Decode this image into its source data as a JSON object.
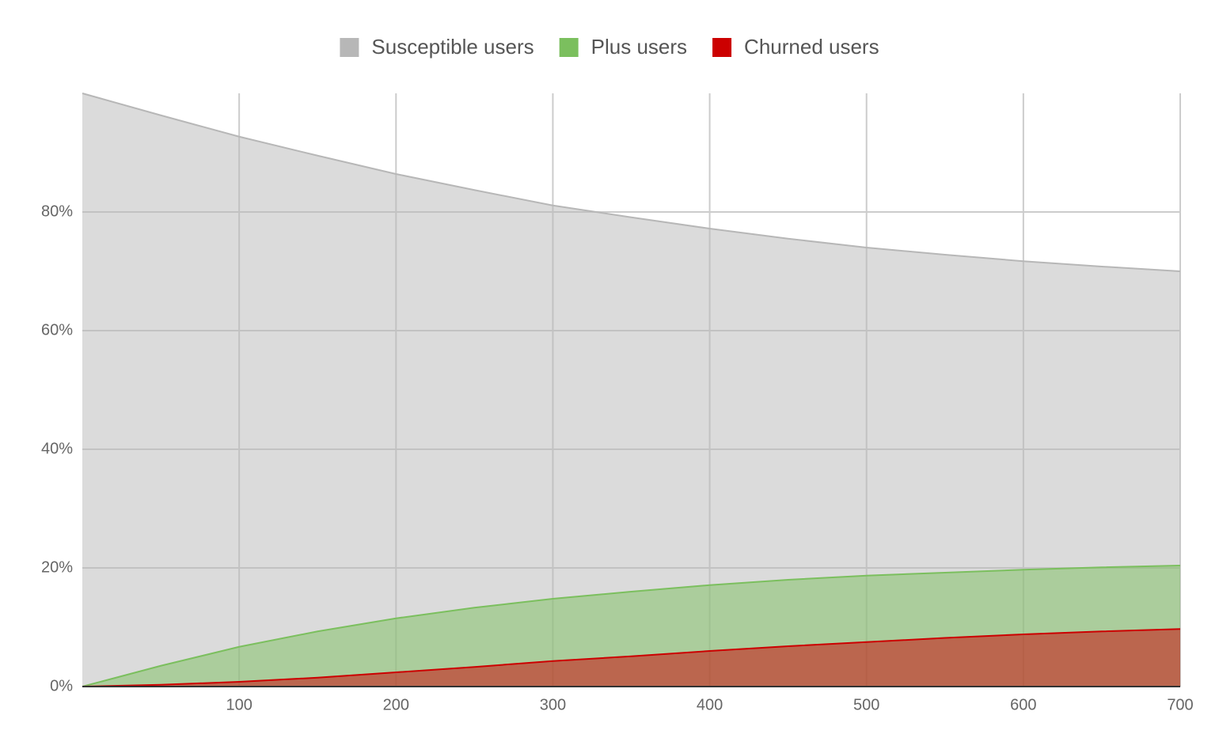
{
  "chart_data": {
    "type": "area",
    "x": [
      0,
      50,
      100,
      150,
      200,
      250,
      300,
      350,
      400,
      450,
      500,
      550,
      600,
      650,
      700
    ],
    "series": [
      {
        "name": "Susceptible users",
        "color": "#b7b7b7",
        "values": [
          100,
          96.3,
          92.7,
          89.5,
          86.4,
          83.7,
          81.1,
          79.1,
          77.2,
          75.5,
          74,
          72.8,
          71.7,
          70.8,
          70
        ]
      },
      {
        "name": "Plus users",
        "color": "#7bbf5e",
        "values": [
          0,
          3.5,
          6.7,
          9.3,
          11.5,
          13.3,
          14.8,
          16.0,
          17.1,
          18.0,
          18.7,
          19.2,
          19.7,
          20.1,
          20.4
        ]
      },
      {
        "name": "Churned users",
        "color": "#cc0000",
        "values": [
          0,
          0.3,
          0.8,
          1.5,
          2.4,
          3.3,
          4.3,
          5.1,
          6.0,
          6.8,
          7.5,
          8.2,
          8.8,
          9.3,
          9.7
        ]
      }
    ],
    "xlim": [
      0,
      700
    ],
    "xticks": [
      100,
      200,
      300,
      400,
      500,
      600,
      700
    ],
    "ylim": [
      0,
      100
    ],
    "yticks": [
      {
        "value": 0,
        "label": "0%"
      },
      {
        "value": 20,
        "label": "20%"
      },
      {
        "value": 40,
        "label": "40%"
      },
      {
        "value": 60,
        "label": "60%"
      },
      {
        "value": 80,
        "label": "80%"
      }
    ],
    "grid": true,
    "legend": "top"
  }
}
